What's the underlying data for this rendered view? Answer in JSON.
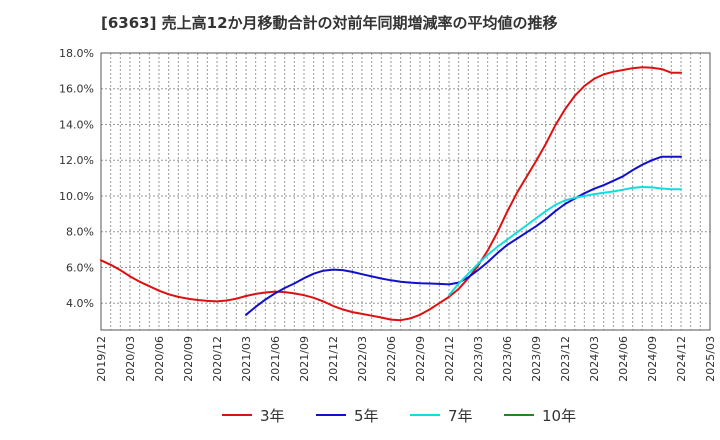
{
  "title": "[6363]  売上高12か月移動合計の対前年同期増減率の平均値の推移",
  "chart_data": {
    "type": "line",
    "title": "[6363]  売上高12か月移動合計の対前年同期増減率の平均値の推移",
    "xlabel": "",
    "ylabel": "",
    "x_ticks": [
      "2019/12",
      "2020/03",
      "2020/06",
      "2020/09",
      "2020/12",
      "2021/03",
      "2021/06",
      "2021/09",
      "2021/12",
      "2022/03",
      "2022/06",
      "2022/09",
      "2022/12",
      "2023/03",
      "2023/06",
      "2023/09",
      "2023/12",
      "2024/03",
      "2024/06",
      "2024/09",
      "2024/12",
      "2025/03"
    ],
    "y_ticks": [
      "4.0%",
      "6.0%",
      "8.0%",
      "10.0%",
      "12.0%",
      "14.0%",
      "16.0%",
      "18.0%"
    ],
    "ylim": [
      2.5,
      18.0
    ],
    "grid": true,
    "legend_position": "bottom",
    "series": [
      {
        "name": "3年",
        "color": "#dd1111",
        "x": [
          "2019/12",
          "2020/01",
          "2020/02",
          "2020/03",
          "2020/04",
          "2020/05",
          "2020/06",
          "2020/07",
          "2020/08",
          "2020/09",
          "2020/10",
          "2020/11",
          "2020/12",
          "2021/01",
          "2021/02",
          "2021/03",
          "2021/04",
          "2021/05",
          "2021/06",
          "2021/07",
          "2021/08",
          "2021/09",
          "2021/10",
          "2021/11",
          "2021/12",
          "2022/01",
          "2022/02",
          "2022/03",
          "2022/04",
          "2022/05",
          "2022/06",
          "2022/07",
          "2022/08",
          "2022/09",
          "2022/10",
          "2022/11",
          "2022/12",
          "2023/01",
          "2023/02",
          "2023/03",
          "2023/04",
          "2023/05",
          "2023/06",
          "2023/07",
          "2023/08",
          "2023/09",
          "2023/10",
          "2023/11",
          "2023/12",
          "2024/01",
          "2024/02",
          "2024/03",
          "2024/04",
          "2024/05",
          "2024/06",
          "2024/07",
          "2024/08",
          "2024/09",
          "2024/10",
          "2024/11",
          "2024/12"
        ],
        "values": [
          6.4,
          6.15,
          5.85,
          5.5,
          5.2,
          4.95,
          4.7,
          4.5,
          4.35,
          4.25,
          4.18,
          4.13,
          4.1,
          4.15,
          4.25,
          4.4,
          4.52,
          4.6,
          4.65,
          4.62,
          4.55,
          4.45,
          4.3,
          4.1,
          3.85,
          3.65,
          3.5,
          3.4,
          3.3,
          3.2,
          3.08,
          3.05,
          3.15,
          3.35,
          3.65,
          4.0,
          4.35,
          4.8,
          5.4,
          6.1,
          6.95,
          7.95,
          9.1,
          10.15,
          11.05,
          11.95,
          12.9,
          13.95,
          14.85,
          15.6,
          16.15,
          16.55,
          16.8,
          16.95,
          17.05,
          17.15,
          17.2,
          17.18,
          17.1,
          16.9,
          16.9
        ]
      },
      {
        "name": "5年",
        "color": "#1111cc",
        "x": [
          "2021/03",
          "2021/04",
          "2021/05",
          "2021/06",
          "2021/07",
          "2021/08",
          "2021/09",
          "2021/10",
          "2021/11",
          "2021/12",
          "2022/01",
          "2022/02",
          "2022/03",
          "2022/04",
          "2022/05",
          "2022/06",
          "2022/07",
          "2022/08",
          "2022/09",
          "2022/10",
          "2022/11",
          "2022/12",
          "2023/01",
          "2023/02",
          "2023/03",
          "2023/04",
          "2023/05",
          "2023/06",
          "2023/07",
          "2023/08",
          "2023/09",
          "2023/10",
          "2023/11",
          "2023/12",
          "2024/01",
          "2024/02",
          "2024/03",
          "2024/04",
          "2024/05",
          "2024/06",
          "2024/07",
          "2024/08",
          "2024/09",
          "2024/10",
          "2024/11",
          "2024/12"
        ],
        "values": [
          3.35,
          3.8,
          4.2,
          4.55,
          4.85,
          5.1,
          5.4,
          5.65,
          5.82,
          5.88,
          5.85,
          5.75,
          5.62,
          5.5,
          5.38,
          5.28,
          5.2,
          5.15,
          5.12,
          5.1,
          5.08,
          5.05,
          5.15,
          5.45,
          5.85,
          6.3,
          6.8,
          7.25,
          7.6,
          7.95,
          8.3,
          8.7,
          9.15,
          9.55,
          9.85,
          10.15,
          10.4,
          10.6,
          10.85,
          11.1,
          11.45,
          11.75,
          12.0,
          12.2,
          12.2,
          12.2
        ]
      },
      {
        "name": "7年",
        "color": "#11dddd",
        "x": [
          "2022/12",
          "2023/01",
          "2023/02",
          "2023/03",
          "2023/04",
          "2023/05",
          "2023/06",
          "2023/07",
          "2023/08",
          "2023/09",
          "2023/10",
          "2023/11",
          "2023/12",
          "2024/01",
          "2024/02",
          "2024/03",
          "2024/04",
          "2024/05",
          "2024/06",
          "2024/07",
          "2024/08",
          "2024/09",
          "2024/10",
          "2024/11",
          "2024/12"
        ],
        "values": [
          4.45,
          5.1,
          5.65,
          6.2,
          6.7,
          7.15,
          7.55,
          7.95,
          8.35,
          8.75,
          9.15,
          9.5,
          9.75,
          9.9,
          10.0,
          10.1,
          10.18,
          10.25,
          10.35,
          10.45,
          10.5,
          10.48,
          10.42,
          10.38,
          10.38
        ]
      },
      {
        "name": "10年",
        "color": "#228822",
        "x": [],
        "values": []
      }
    ]
  }
}
